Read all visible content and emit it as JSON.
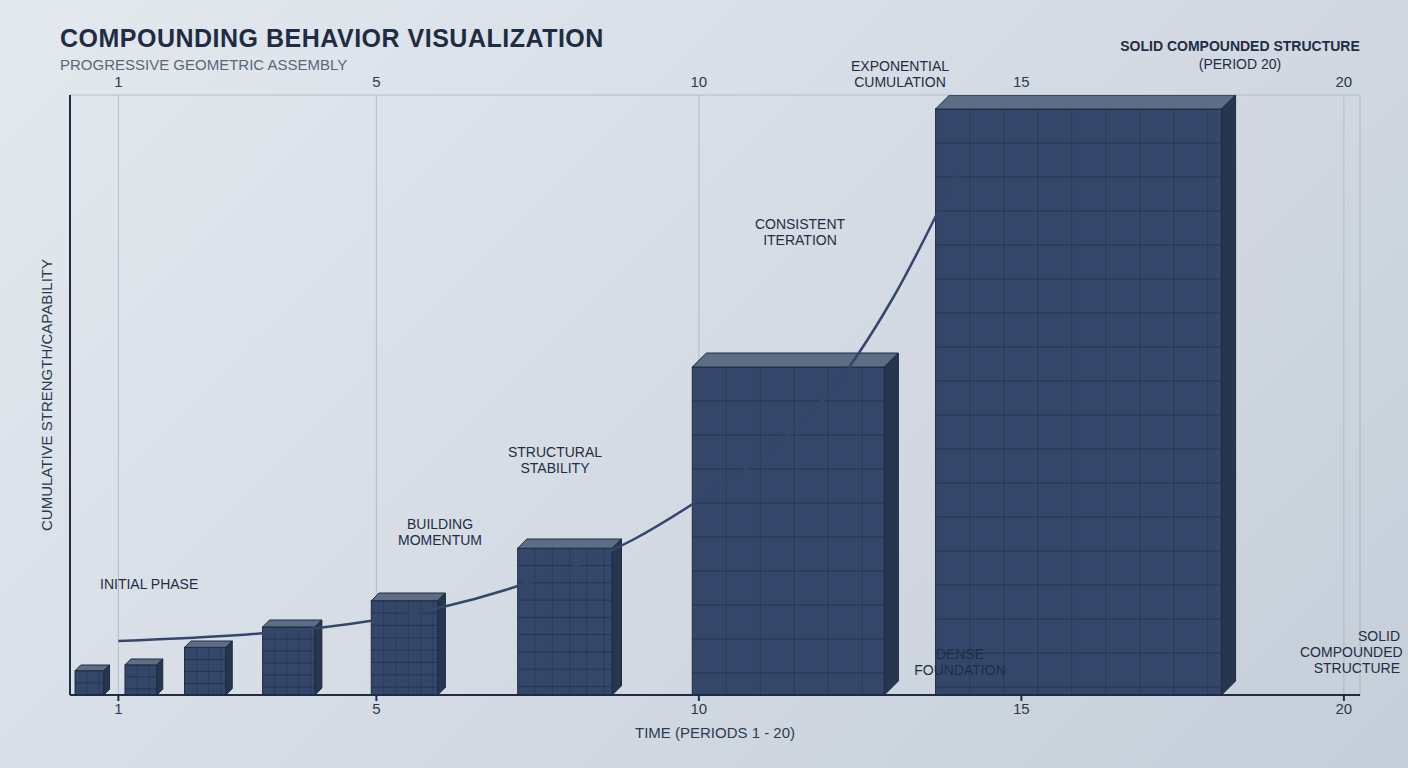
{
  "chart_data": {
    "type": "line",
    "title": "COMPOUNDING BEHAVIOR VISUALIZATION",
    "subtitle": "PROGRESSIVE GEOMETRIC ASSEMBLY",
    "x_label": "TIME (PERIODS 1 - 20)",
    "y_label": "CUMULATIVE STRENGTH/CAPABILITY",
    "xlim": [
      0.25,
      20.25
    ],
    "xticks": [
      1,
      5,
      10,
      15,
      20
    ],
    "ylim": [
      0,
      100
    ],
    "yticks": [
      0,
      25,
      50,
      75,
      100
    ],
    "grid": true,
    "tick_labels": "x",
    "series": [
      {
        "type": "bar",
        "color": "#34476a",
        "x": [
          0.6,
          1.4,
          2.4,
          3.7,
          5.5,
          8,
          11.5,
          16
        ],
        "values": [
          5,
          6,
          9,
          12.5,
          17,
          26,
          57,
          100
        ]
      },
      {
        "type": "line",
        "color": "#34476a",
        "x": [
          1,
          5,
          7,
          9,
          10,
          11,
          12,
          13,
          14
        ],
        "values": [
          9,
          12.5,
          17.5,
          26,
          32.5,
          40,
          50,
          66,
          87
        ]
      }
    ],
    "annotations": [
      "INITIAL PHASE",
      "BUILDING MOMENTUM",
      "STRUCTURAL STABILITY",
      "CONSISTENT ITERATION",
      "EXPONENTIAL CUMULATION",
      "DENSE FOUNDATION",
      "SOLID COMPOUNDED STRUCTURE",
      "SOLID COMPOUNDED STRUCTURE",
      "(PERIOD 20)"
    ]
  }
}
